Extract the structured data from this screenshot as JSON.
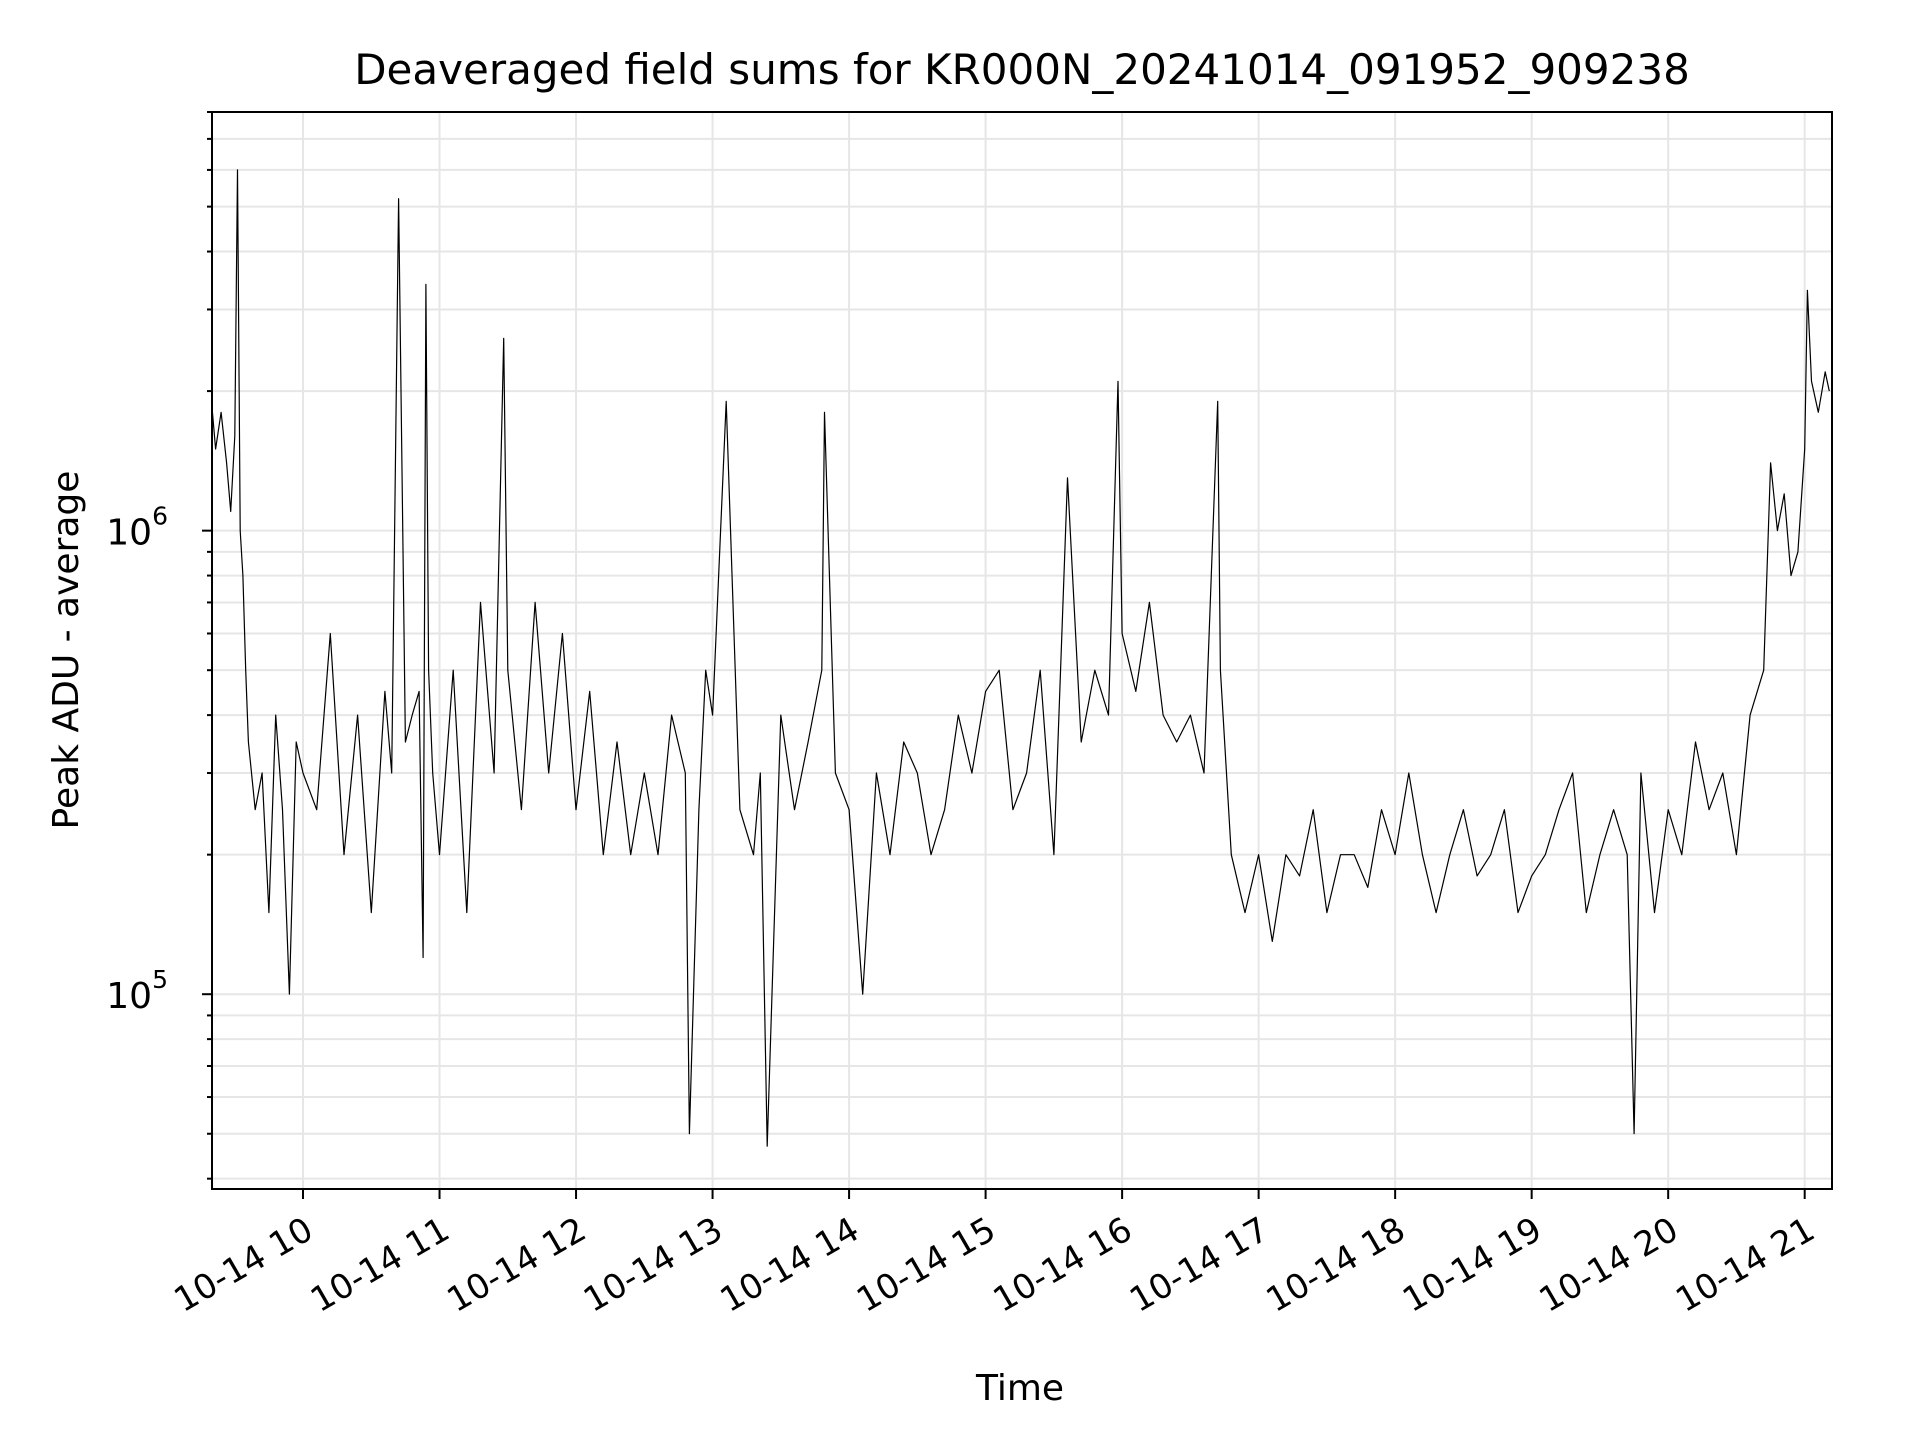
{
  "chart_data": {
    "type": "line",
    "title": "Deaveraged field sums for KR000N_20241014_091952_909238",
    "xlabel": "Time",
    "ylabel": "Peak ADU - average",
    "yscale": "log",
    "ylim": [
      38000,
      8000000
    ],
    "xlim": [
      "2024-10-14 09:20",
      "2024-10-14 21:12"
    ],
    "grid": true,
    "x_tick_labels": [
      "10-14 10",
      "10-14 11",
      "10-14 12",
      "10-14 13",
      "10-14 14",
      "10-14 15",
      "10-14 16",
      "10-14 17",
      "10-14 18",
      "10-14 19",
      "10-14 20",
      "10-14 21"
    ],
    "x_tick_hours": [
      10,
      11,
      12,
      13,
      14,
      15,
      16,
      17,
      18,
      19,
      20,
      21
    ],
    "y_tick_labels": [
      {
        "base": "10",
        "exp": "5",
        "value": 100000
      },
      {
        "base": "10",
        "exp": "6",
        "value": 1000000
      }
    ],
    "line_color": "#000000",
    "series": [
      {
        "x_hours": [
          9.33,
          9.36,
          9.4,
          9.44,
          9.47,
          9.5,
          9.52,
          9.54,
          9.56,
          9.58,
          9.6,
          9.65,
          9.7,
          9.75,
          9.8,
          9.85,
          9.9,
          9.95,
          10.0,
          10.1,
          10.2,
          10.3,
          10.4,
          10.5,
          10.6,
          10.65,
          10.7,
          10.75,
          10.8,
          10.85,
          10.88,
          10.9,
          10.92,
          10.95,
          11.0,
          11.1,
          11.2,
          11.3,
          11.4,
          11.47,
          11.5,
          11.6,
          11.7,
          11.8,
          11.9,
          12.0,
          12.1,
          12.2,
          12.3,
          12.4,
          12.5,
          12.6,
          12.7,
          12.8,
          12.83,
          12.9,
          12.95,
          13.0,
          13.1,
          13.2,
          13.3,
          13.35,
          13.4,
          13.5,
          13.6,
          13.7,
          13.8,
          13.82,
          13.9,
          14.0,
          14.1,
          14.2,
          14.3,
          14.4,
          14.5,
          14.6,
          14.7,
          14.8,
          14.9,
          15.0,
          15.1,
          15.2,
          15.3,
          15.4,
          15.5,
          15.6,
          15.7,
          15.8,
          15.9,
          15.97,
          16.0,
          16.1,
          16.2,
          16.3,
          16.4,
          16.5,
          16.6,
          16.7,
          16.72,
          16.8,
          16.9,
          17.0,
          17.1,
          17.2,
          17.3,
          17.4,
          17.5,
          17.6,
          17.7,
          17.8,
          17.9,
          18.0,
          18.1,
          18.2,
          18.3,
          18.4,
          18.5,
          18.6,
          18.7,
          18.8,
          18.9,
          19.0,
          19.1,
          19.2,
          19.3,
          19.4,
          19.5,
          19.6,
          19.7,
          19.75,
          19.8,
          19.9,
          20.0,
          20.1,
          20.2,
          20.3,
          20.4,
          20.5,
          20.6,
          20.7,
          20.75,
          20.8,
          20.85,
          20.9,
          20.95,
          21.0,
          21.02,
          21.05,
          21.1,
          21.15,
          21.18
        ],
        "values": [
          1900000,
          1500000,
          1800000,
          1400000,
          1100000,
          1600000,
          6000000,
          1000000,
          800000,
          500000,
          350000,
          250000,
          300000,
          150000,
          400000,
          250000,
          100000,
          350000,
          300000,
          250000,
          600000,
          200000,
          400000,
          150000,
          450000,
          300000,
          5200000,
          350000,
          400000,
          450000,
          120000,
          3400000,
          500000,
          300000,
          200000,
          500000,
          150000,
          700000,
          300000,
          2600000,
          500000,
          250000,
          700000,
          300000,
          600000,
          250000,
          450000,
          200000,
          350000,
          200000,
          300000,
          200000,
          400000,
          300000,
          50000,
          250000,
          500000,
          400000,
          1900000,
          250000,
          200000,
          300000,
          47000,
          400000,
          250000,
          350000,
          500000,
          1800000,
          300000,
          250000,
          100000,
          300000,
          200000,
          350000,
          300000,
          200000,
          250000,
          400000,
          300000,
          450000,
          500000,
          250000,
          300000,
          500000,
          200000,
          1300000,
          350000,
          500000,
          400000,
          2100000,
          600000,
          450000,
          700000,
          400000,
          350000,
          400000,
          300000,
          1900000,
          500000,
          200000,
          150000,
          200000,
          130000,
          200000,
          180000,
          250000,
          150000,
          200000,
          200000,
          170000,
          250000,
          200000,
          300000,
          200000,
          150000,
          200000,
          250000,
          180000,
          200000,
          250000,
          150000,
          180000,
          200000,
          250000,
          300000,
          150000,
          200000,
          250000,
          200000,
          50000,
          300000,
          150000,
          250000,
          200000,
          350000,
          250000,
          300000,
          200000,
          400000,
          500000,
          1400000,
          1000000,
          1200000,
          800000,
          900000,
          1500000,
          3300000,
          2100000,
          1800000,
          2200000,
          2000000
        ]
      }
    ]
  }
}
